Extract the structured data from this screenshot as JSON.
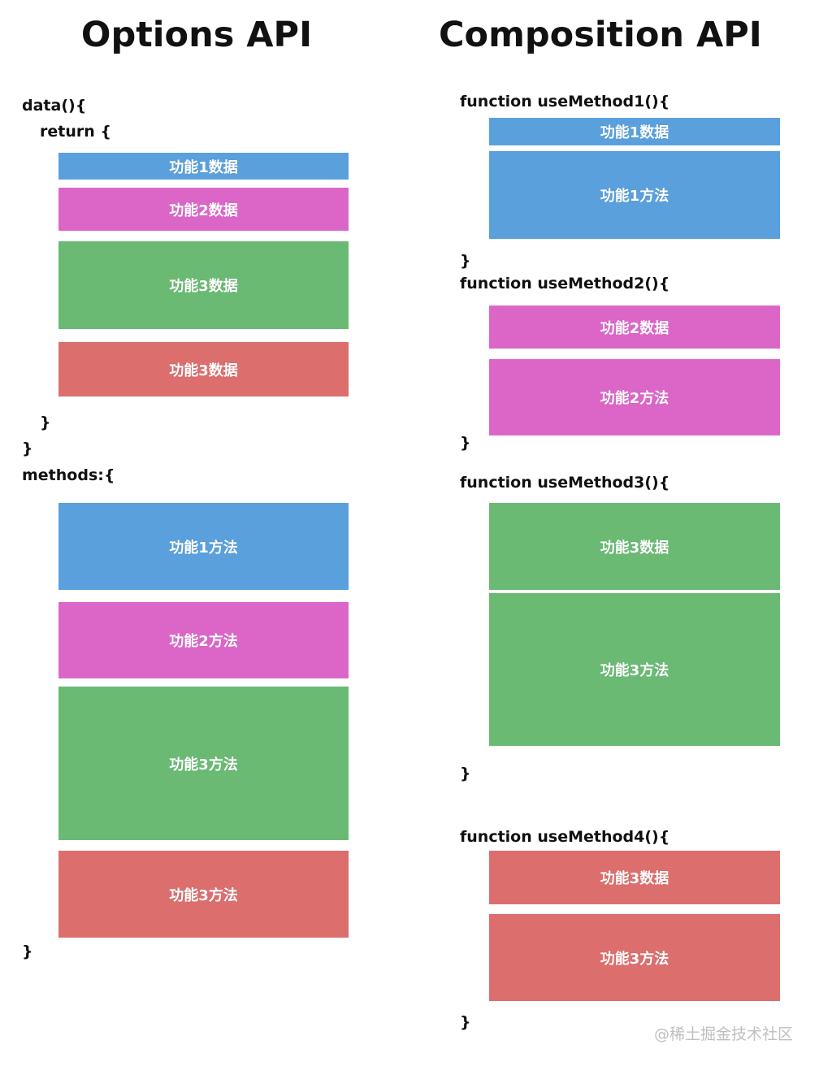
{
  "titles": {
    "left": "Options API",
    "right": "Composition API"
  },
  "options_api": {
    "data_open": "data(){",
    "return_open": "return {",
    "return_close": "}",
    "data_close": "}",
    "methods_open": "methods:{",
    "methods_close": "}",
    "data_blocks": [
      "功能1数据",
      "功能2数据",
      "功能3数据",
      "功能3数据"
    ],
    "method_blocks": [
      "功能1方法",
      "功能2方法",
      "功能3方法",
      "功能3方法"
    ]
  },
  "composition_api": {
    "fn1": {
      "signature": "function useMethod1(){",
      "close": "}",
      "blocks": [
        "功能1数据",
        "功能1方法"
      ]
    },
    "fn2": {
      "signature": "function useMethod2(){",
      "close": "}",
      "blocks": [
        "功能2数据",
        "功能2方法"
      ]
    },
    "fn3": {
      "signature": "function useMethod3(){",
      "close": "}",
      "blocks": [
        "功能3数据",
        "功能3方法"
      ]
    },
    "fn4": {
      "signature": "function useMethod4(){",
      "close": "}",
      "blocks": [
        "功能3数据",
        "功能3方法"
      ]
    }
  },
  "colors": {
    "feature1": "#5aa0dc",
    "feature2": "#dc66c8",
    "feature3": "#6aba74",
    "feature4": "#dc6e6e"
  },
  "watermark": "@稀土掘金技术社区"
}
